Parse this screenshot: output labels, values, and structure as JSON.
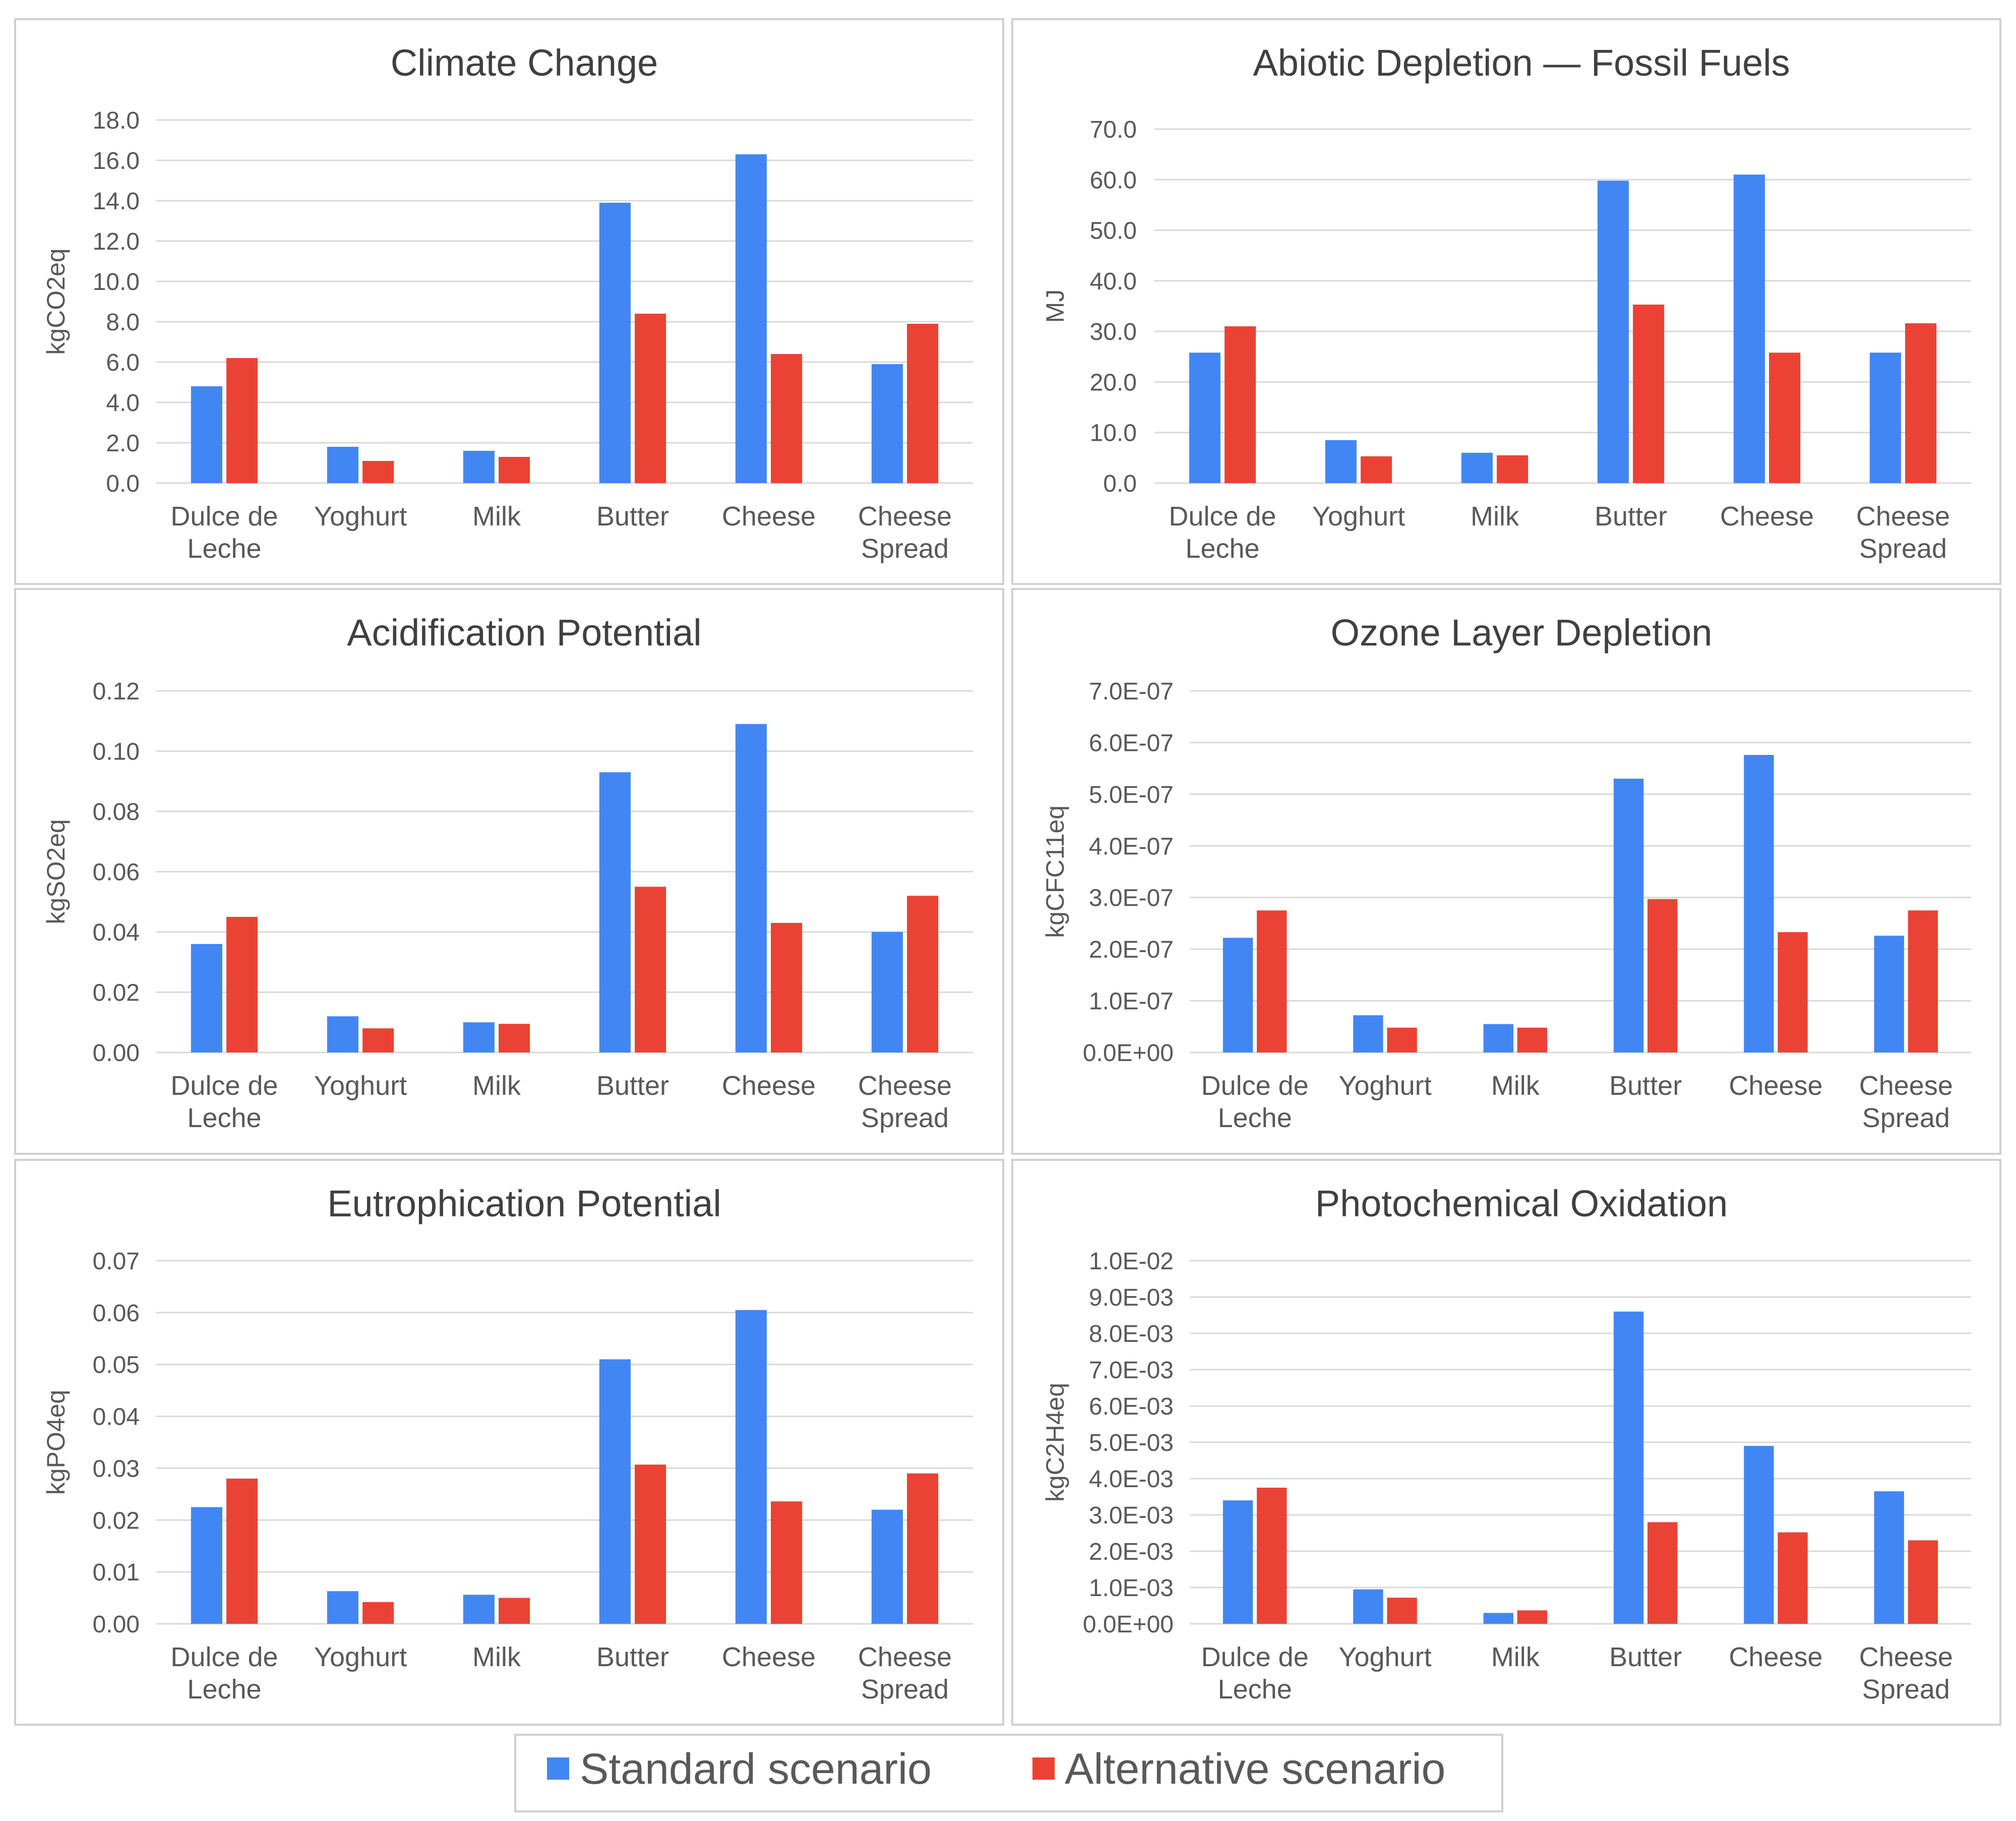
{
  "colors": {
    "standard": "#4286f4",
    "alternative": "#ea4335",
    "grid": "#d9d9d9",
    "panel_border": "#d0d0d0"
  },
  "legend": {
    "items": [
      {
        "label": "Standard scenario",
        "color": "#4286f4"
      },
      {
        "label": "Alternative scenario",
        "color": "#ea4335"
      }
    ]
  },
  "chart_data": [
    {
      "type": "bar",
      "title": "Climate Change",
      "ylabel": "kgCO2eq",
      "categories": [
        [
          "Dulce de",
          "Leche"
        ],
        [
          "Yoghurt"
        ],
        [
          "Milk"
        ],
        [
          "Butter"
        ],
        [
          "Cheese"
        ],
        [
          "Cheese",
          "Spread"
        ]
      ],
      "yticks": [
        "0.0",
        "2.0",
        "4.0",
        "6.0",
        "8.0",
        "10.0",
        "12.0",
        "14.0",
        "16.0",
        "18.0"
      ],
      "ylim": [
        0,
        18
      ],
      "series": [
        {
          "name": "Standard scenario",
          "values": [
            4.8,
            1.8,
            1.6,
            13.9,
            16.3,
            5.9
          ]
        },
        {
          "name": "Alternative scenario",
          "values": [
            6.2,
            1.1,
            1.3,
            8.4,
            6.4,
            7.9
          ]
        }
      ]
    },
    {
      "type": "bar",
      "title": "Abiotic Depletion — Fossil Fuels",
      "ylabel": "MJ",
      "categories": [
        [
          "Dulce de",
          "Leche"
        ],
        [
          "Yoghurt"
        ],
        [
          "Milk"
        ],
        [
          "Butter"
        ],
        [
          "Cheese"
        ],
        [
          "Cheese",
          "Spread"
        ]
      ],
      "yticks": [
        "0.0",
        "10.0",
        "20.0",
        "30.0",
        "40.0",
        "50.0",
        "60.0",
        "70.0"
      ],
      "ylim": [
        0,
        70
      ],
      "series": [
        {
          "name": "Standard scenario",
          "values": [
            25.8,
            8.5,
            6.0,
            59.8,
            61.0,
            25.8
          ]
        },
        {
          "name": "Alternative scenario",
          "values": [
            31.0,
            5.3,
            5.5,
            35.3,
            25.8,
            31.6
          ]
        }
      ]
    },
    {
      "type": "bar",
      "title": "Acidification Potential",
      "ylabel": "kgSO2eq",
      "categories": [
        [
          "Dulce de",
          "Leche"
        ],
        [
          "Yoghurt"
        ],
        [
          "Milk"
        ],
        [
          "Butter"
        ],
        [
          "Cheese"
        ],
        [
          "Cheese",
          "Spread"
        ]
      ],
      "yticks": [
        "0.00",
        "0.02",
        "0.04",
        "0.06",
        "0.08",
        "0.10",
        "0.12"
      ],
      "ylim": [
        0,
        0.12
      ],
      "series": [
        {
          "name": "Standard scenario",
          "values": [
            0.036,
            0.012,
            0.01,
            0.093,
            0.109,
            0.04
          ]
        },
        {
          "name": "Alternative scenario",
          "values": [
            0.045,
            0.008,
            0.0095,
            0.055,
            0.043,
            0.052
          ]
        }
      ]
    },
    {
      "type": "bar",
      "title": "Ozone Layer Depletion",
      "ylabel": "kgCFC11eq",
      "categories": [
        [
          "Dulce de",
          "Leche"
        ],
        [
          "Yoghurt"
        ],
        [
          "Milk"
        ],
        [
          "Butter"
        ],
        [
          "Cheese"
        ],
        [
          "Cheese",
          "Spread"
        ]
      ],
      "yticks": [
        "0.0E+00",
        "1.0E-07",
        "2.0E-07",
        "3.0E-07",
        "4.0E-07",
        "5.0E-07",
        "6.0E-07",
        "7.0E-07"
      ],
      "ylim": [
        0,
        7e-07
      ],
      "series": [
        {
          "name": "Standard scenario",
          "values": [
            2.22e-07,
            7.2e-08,
            5.5e-08,
            5.3e-07,
            5.76e-07,
            2.26e-07
          ]
        },
        {
          "name": "Alternative scenario",
          "values": [
            2.75e-07,
            4.8e-08,
            4.8e-08,
            2.97e-07,
            2.33e-07,
            2.75e-07
          ]
        }
      ]
    },
    {
      "type": "bar",
      "title": "Eutrophication Potential",
      "ylabel": "kgPO4eq",
      "categories": [
        [
          "Dulce de",
          "Leche"
        ],
        [
          "Yoghurt"
        ],
        [
          "Milk"
        ],
        [
          "Butter"
        ],
        [
          "Cheese"
        ],
        [
          "Cheese",
          "Spread"
        ]
      ],
      "yticks": [
        "0.00",
        "0.01",
        "0.02",
        "0.03",
        "0.04",
        "0.05",
        "0.06",
        "0.07"
      ],
      "ylim": [
        0,
        0.07
      ],
      "series": [
        {
          "name": "Standard scenario",
          "values": [
            0.0225,
            0.0063,
            0.0056,
            0.051,
            0.0605,
            0.022
          ]
        },
        {
          "name": "Alternative scenario",
          "values": [
            0.028,
            0.0042,
            0.005,
            0.0307,
            0.0236,
            0.029
          ]
        }
      ]
    },
    {
      "type": "bar",
      "title": "Photochemical Oxidation",
      "ylabel": "kgC2H4eq",
      "categories": [
        [
          "Dulce de",
          "Leche"
        ],
        [
          "Yoghurt"
        ],
        [
          "Milk"
        ],
        [
          "Butter"
        ],
        [
          "Cheese"
        ],
        [
          "Cheese",
          "Spread"
        ]
      ],
      "yticks": [
        "0.0E+00",
        "1.0E-03",
        "2.0E-03",
        "3.0E-03",
        "4.0E-03",
        "5.0E-03",
        "6.0E-03",
        "7.0E-03",
        "8.0E-03",
        "9.0E-03",
        "1.0E-02"
      ],
      "ylim": [
        0,
        0.01
      ],
      "series": [
        {
          "name": "Standard scenario",
          "values": [
            0.0034,
            0.00095,
            0.0003,
            0.0086,
            0.0049,
            0.00365
          ]
        },
        {
          "name": "Alternative scenario",
          "values": [
            0.00375,
            0.00072,
            0.00037,
            0.0028,
            0.00252,
            0.0023
          ]
        }
      ]
    }
  ]
}
